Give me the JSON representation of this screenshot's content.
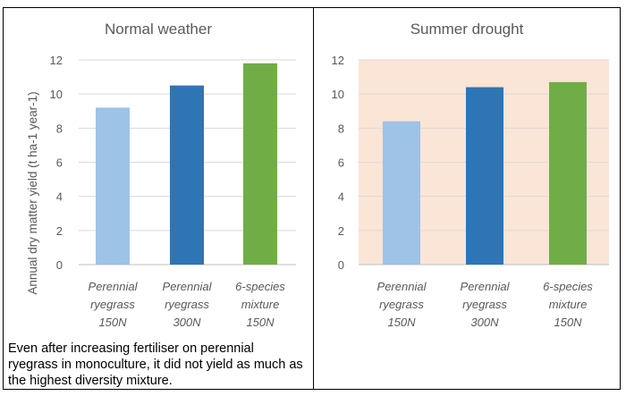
{
  "chart_data": [
    {
      "type": "bar",
      "title": "Normal weather",
      "ylabel": "Annual dry matter yield (t ha-1 year-1)",
      "ylim": [
        0,
        12
      ],
      "yticks": [
        0,
        2,
        4,
        6,
        8,
        10,
        12
      ],
      "grid": true,
      "background": "#ffffff",
      "categories": [
        [
          "Perennial",
          "ryegrass",
          "150N"
        ],
        [
          "Perennial",
          "ryegrass",
          "300N"
        ],
        [
          "6-species",
          "mixture",
          "150N"
        ]
      ],
      "values": [
        9.2,
        10.5,
        11.8
      ],
      "colors": [
        "#9dc3e6",
        "#2e75b6",
        "#70ad47"
      ]
    },
    {
      "type": "bar",
      "title": "Summer drought",
      "ylim": [
        0,
        12
      ],
      "yticks": [
        0,
        2,
        4,
        6,
        8,
        10,
        12
      ],
      "grid": true,
      "background": "#fbe5d6",
      "categories": [
        [
          "Perennial",
          "ryegrass",
          "150N"
        ],
        [
          "Perennial",
          "ryegrass",
          "300N"
        ],
        [
          "6-species",
          "mixture",
          "150N"
        ]
      ],
      "values": [
        8.4,
        10.4,
        10.7
      ],
      "colors": [
        "#9dc3e6",
        "#2e75b6",
        "#70ad47"
      ]
    }
  ],
  "caption": "Even after increasing fertiliser on perennial ryegrass in monoculture, it did not yield as much as the highest diversity mixture."
}
